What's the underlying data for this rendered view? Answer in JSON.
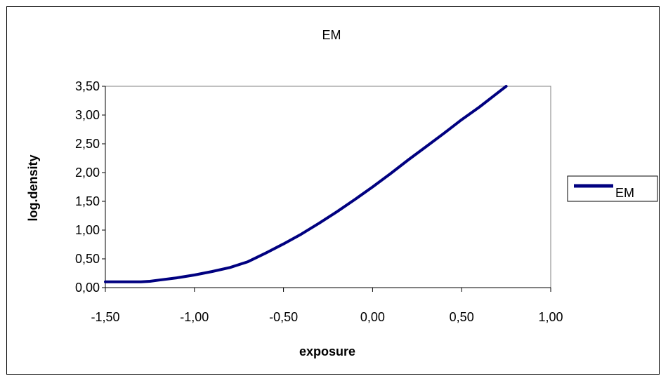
{
  "chart_data": {
    "type": "line",
    "title": "EM",
    "xlabel": "exposure",
    "ylabel": "log.density",
    "xlim": [
      -1.5,
      1.0
    ],
    "ylim": [
      0.0,
      3.5
    ],
    "x_ticks": [
      "-1,50",
      "-1,00",
      "-0,50",
      "0,00",
      "0,50",
      "1,00"
    ],
    "y_ticks": [
      "0,00",
      "0,50",
      "1,00",
      "1,50",
      "2,00",
      "2,50",
      "3,00",
      "3,50"
    ],
    "grid": false,
    "legend_position": "right",
    "series": [
      {
        "name": "EM",
        "color": "#000080",
        "x": [
          -1.5,
          -1.4,
          -1.3,
          -1.25,
          -1.2,
          -1.1,
          -1.0,
          -0.9,
          -0.8,
          -0.7,
          -0.6,
          -0.5,
          -0.4,
          -0.3,
          -0.2,
          -0.1,
          0.0,
          0.1,
          0.2,
          0.3,
          0.4,
          0.5,
          0.6,
          0.7,
          0.75
        ],
        "y": [
          0.1,
          0.1,
          0.1,
          0.11,
          0.13,
          0.17,
          0.22,
          0.28,
          0.35,
          0.45,
          0.6,
          0.76,
          0.93,
          1.12,
          1.32,
          1.53,
          1.75,
          1.98,
          2.22,
          2.45,
          2.68,
          2.92,
          3.14,
          3.38,
          3.5
        ]
      }
    ]
  }
}
